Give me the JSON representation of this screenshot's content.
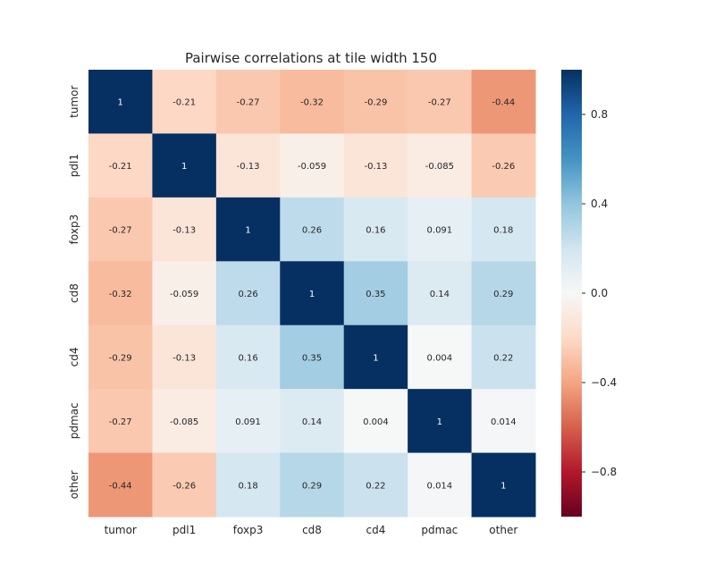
{
  "chart_data": {
    "type": "heatmap",
    "title": "Pairwise correlations at tile width 150",
    "xlabel": "",
    "ylabel": "",
    "rows": [
      "tumor",
      "pdl1",
      "foxp3",
      "cd8",
      "cd4",
      "pdmac",
      "other"
    ],
    "columns": [
      "tumor",
      "pdl1",
      "foxp3",
      "cd8",
      "cd4",
      "pdmac",
      "other"
    ],
    "values": [
      [
        1,
        -0.21,
        -0.27,
        -0.32,
        -0.29,
        -0.27,
        -0.44
      ],
      [
        -0.21,
        1,
        -0.13,
        -0.059,
        -0.13,
        -0.085,
        -0.26
      ],
      [
        -0.27,
        -0.13,
        1,
        0.26,
        0.16,
        0.091,
        0.18
      ],
      [
        -0.32,
        -0.059,
        0.26,
        1,
        0.35,
        0.14,
        0.29
      ],
      [
        -0.29,
        -0.13,
        0.16,
        0.35,
        1,
        0.004,
        0.22
      ],
      [
        -0.27,
        -0.085,
        0.091,
        0.14,
        0.004,
        1,
        0.014
      ],
      [
        -0.44,
        -0.26,
        0.18,
        0.29,
        0.22,
        0.014,
        1
      ]
    ],
    "vmin": -1,
    "vmax": 1,
    "colormap": "RdBu",
    "colorbar": {
      "ticks": [
        0.8,
        0.4,
        0.0,
        -0.4,
        -0.8
      ],
      "tick_labels": [
        "0.8",
        "0.4",
        "0.0",
        "−0.4",
        "−0.8"
      ]
    },
    "annotated": true,
    "grid": false
  }
}
